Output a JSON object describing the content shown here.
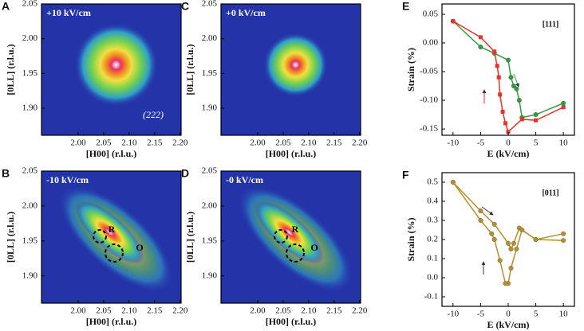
{
  "chart_data": [
    {
      "type": "map",
      "panel": "A",
      "label": "+10 kV/cm",
      "annotations": [
        "(222)"
      ],
      "x_label": "[H00] (r.l.u.)",
      "y_label": "[0LL] (r.l.u.)",
      "xlim": [
        1.928,
        2.202
      ],
      "ylim": [
        1.861,
        2.05
      ],
      "xticks": [
        {
          "value": 2.0,
          "label": "2.00"
        },
        {
          "value": 2.05,
          "label": "2.05"
        },
        {
          "value": 2.1,
          "label": "2.10"
        },
        {
          "value": 2.15,
          "label": "2.15"
        },
        {
          "value": 2.2,
          "label": "2.20"
        }
      ],
      "yticks": [
        {
          "value": 1.9,
          "label": "1.90"
        },
        {
          "value": 1.95,
          "label": "1.95"
        },
        {
          "value": 2.0,
          "label": "2.00"
        },
        {
          "value": 2.05,
          "label": "2.05"
        }
      ]
    },
    {
      "type": "map",
      "panel": "B",
      "label": "-10 kV/cm",
      "annotations": [
        "R",
        "O"
      ],
      "x_label": "[H00] (r.l.u.)",
      "y_label": "[0LL] (r.l.u.)",
      "xlim": [
        1.928,
        2.202
      ],
      "ylim": [
        1.861,
        2.05
      ],
      "xticks": [
        {
          "value": 2.0,
          "label": "2.00"
        },
        {
          "value": 2.05,
          "label": "2.05"
        },
        {
          "value": 2.1,
          "label": "2.10"
        },
        {
          "value": 2.15,
          "label": "2.15"
        },
        {
          "value": 2.2,
          "label": "2.20"
        }
      ],
      "yticks": [
        {
          "value": 1.9,
          "label": "1.90"
        },
        {
          "value": 1.95,
          "label": "1.95"
        },
        {
          "value": 2.0,
          "label": "2.00"
        },
        {
          "value": 2.05,
          "label": "2.05"
        }
      ]
    },
    {
      "type": "map",
      "panel": "C",
      "label": "+0 kV/cm",
      "annotations": [],
      "x_label": "[H00] (r.l.u.)",
      "y_label": "[0LL] (r.l.u.)",
      "xlim": [
        1.928,
        2.202
      ],
      "ylim": [
        1.861,
        2.05
      ],
      "xticks": [
        {
          "value": 2.0,
          "label": "2.00"
        },
        {
          "value": 2.05,
          "label": "2.05"
        },
        {
          "value": 2.1,
          "label": "2.10"
        },
        {
          "value": 2.15,
          "label": "2.15"
        },
        {
          "value": 2.2,
          "label": "2.20"
        }
      ],
      "yticks": [
        {
          "value": 1.9,
          "label": "1.90"
        },
        {
          "value": 1.95,
          "label": "1.95"
        },
        {
          "value": 2.0,
          "label": "2.00"
        },
        {
          "value": 2.05,
          "label": "2.05"
        }
      ]
    },
    {
      "type": "map",
      "panel": "D",
      "label": "-0 kV/cm",
      "annotations": [
        "R",
        "O"
      ],
      "x_label": "[H00] (r.l.u.)",
      "y_label": "[0LL] (r.l.u.)",
      "xlim": [
        1.928,
        2.202
      ],
      "ylim": [
        1.861,
        2.05
      ],
      "xticks": [
        {
          "value": 2.0,
          "label": "2.00"
        },
        {
          "value": 2.05,
          "label": "2.05"
        },
        {
          "value": 2.1,
          "label": "2.10"
        },
        {
          "value": 2.15,
          "label": "2.15"
        },
        {
          "value": 2.2,
          "label": "2.20"
        }
      ],
      "yticks": [
        {
          "value": 1.9,
          "label": "1.90"
        },
        {
          "value": 1.95,
          "label": "1.95"
        },
        {
          "value": 2.0,
          "label": "2.00"
        },
        {
          "value": 2.05,
          "label": "2.05"
        }
      ]
    },
    {
      "type": "line",
      "panel": "E",
      "label": "[111]",
      "x_label": "E (kV/cm)",
      "y_label": "Strain (%)",
      "xlim": [
        -12,
        12
      ],
      "ylim": [
        -0.161,
        0.068
      ],
      "xticks": [
        -10,
        -5,
        0,
        5,
        10
      ],
      "yticks": [
        {
          "value": 0.05,
          "label": "0.05"
        },
        {
          "value": 0,
          "label": "0.00"
        },
        {
          "value": -0.05,
          "label": "-0.05"
        },
        {
          "value": -0.1,
          "label": "-0.10"
        },
        {
          "value": -0.15,
          "label": "-0.15"
        }
      ],
      "series": [
        {
          "color": "#2e9e3e",
          "marker": "circle",
          "x": [
            -10,
            -5,
            -2.5,
            0,
            0.5,
            1,
            1.5,
            2,
            2.5,
            5,
            10
          ],
          "values": [
            0.038,
            -0.007,
            -0.018,
            -0.03,
            -0.06,
            -0.075,
            -0.08,
            -0.1,
            -0.13,
            -0.125,
            -0.105
          ]
        },
        {
          "color": "#e8322a",
          "marker": "square",
          "x": [
            -10,
            -5,
            -2.5,
            -2,
            -1.7,
            -1.5,
            -1,
            -0.5,
            0,
            2.5,
            5,
            10
          ],
          "values": [
            0.038,
            0.01,
            -0.015,
            -0.04,
            -0.06,
            -0.09,
            -0.12,
            -0.14,
            -0.155,
            -0.133,
            -0.135,
            -0.112
          ]
        }
      ]
    },
    {
      "type": "line",
      "panel": "F",
      "label": "[011]",
      "x_label": "E (kV/cm)",
      "y_label": "Strain (%)",
      "xlim": [
        -12,
        12
      ],
      "ylim": [
        -0.15,
        0.55
      ],
      "xticks": [
        -10,
        -5,
        0,
        5,
        10
      ],
      "yticks": [
        0.5,
        0.4,
        0.3,
        0.2,
        0.1,
        {
          "value": 0,
          "label": "0.0"
        },
        -0.1
      ],
      "series": [
        {
          "color": "#b8902a",
          "marker": "circle",
          "x": [
            -10,
            -5,
            -2.5,
            0,
            0.5,
            1,
            2,
            5,
            10
          ],
          "values": [
            0.5,
            0.35,
            0.28,
            0.18,
            0.15,
            0.18,
            0.26,
            0.2,
            0.195
          ]
        },
        {
          "color": "#b8902a",
          "marker": "circle",
          "x": [
            10,
            5,
            2.5,
            1.5,
            0.5,
            0,
            -0.5,
            -1.5,
            -2.5,
            -3,
            -5,
            -10
          ],
          "values": [
            0.23,
            0.2,
            0.25,
            0.15,
            0.05,
            -0.03,
            -0.03,
            0.09,
            0.2,
            0.23,
            0.3,
            0.5
          ]
        }
      ]
    }
  ]
}
